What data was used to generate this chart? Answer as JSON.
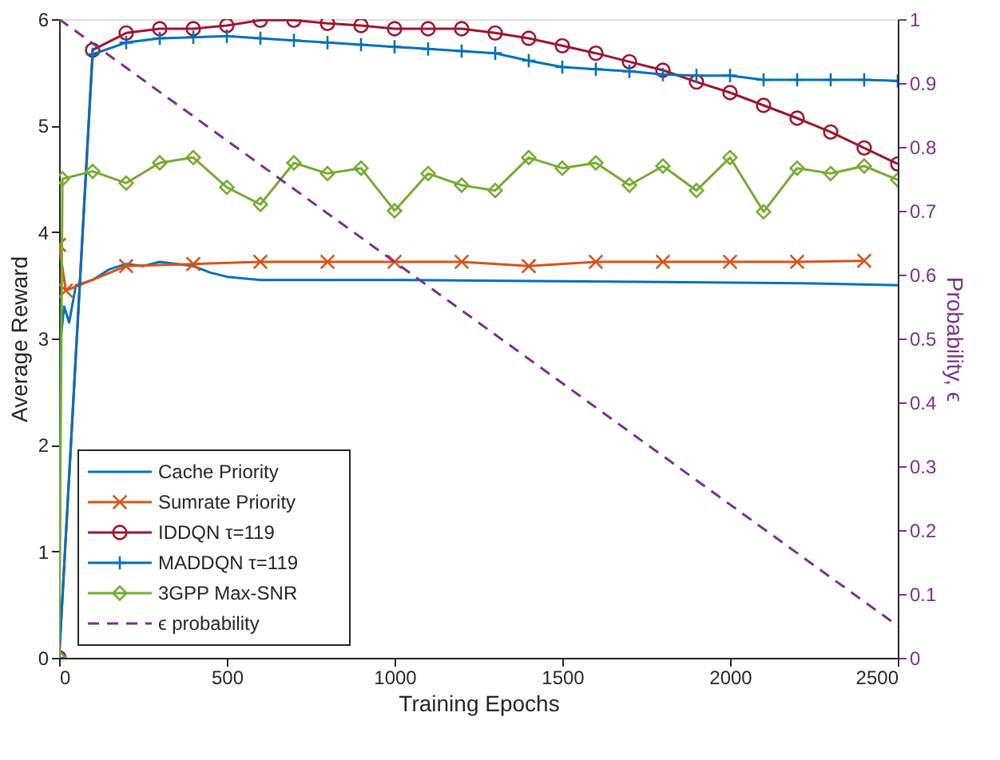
{
  "chart_data": {
    "type": "line",
    "xlabel": "Training Epochs",
    "ylabel": "Average Reward",
    "y2label": "Probability, ϵ",
    "xlim": [
      0,
      2500
    ],
    "xticks": [
      0,
      500,
      1000,
      1500,
      2000,
      2500
    ],
    "ylim": [
      0,
      6
    ],
    "yticks": [
      0,
      1,
      2,
      3,
      4,
      5,
      6
    ],
    "y2lim": [
      0,
      1
    ],
    "y2ticks": [
      0,
      0.1,
      0.2,
      0.3,
      0.4,
      0.5,
      0.6,
      0.7,
      0.8,
      0.9,
      1
    ],
    "grid": false,
    "legend": "bottom left",
    "series": [
      {
        "name": "Cache Priority",
        "color": "#0072bd",
        "marker": "none",
        "line_style": "solid",
        "x": [
          0,
          5,
          15,
          30,
          50,
          100,
          150,
          200,
          250,
          300,
          400,
          450,
          500,
          600,
          800,
          1000,
          1400,
          1800,
          2200,
          2500
        ],
        "values": [
          0,
          3.0,
          3.3,
          3.15,
          3.5,
          3.55,
          3.65,
          3.7,
          3.68,
          3.72,
          3.68,
          3.62,
          3.58,
          3.55,
          3.55,
          3.55,
          3.54,
          3.53,
          3.52,
          3.5
        ]
      },
      {
        "name": "Sumrate Priority",
        "color": "#d95319",
        "marker": "x",
        "line_style": "solid",
        "x": [
          0,
          20,
          200,
          400,
          600,
          800,
          1000,
          1200,
          1400,
          1600,
          1800,
          2000,
          2200,
          2400
        ],
        "values": [
          3.88,
          3.45,
          3.68,
          3.7,
          3.72,
          3.72,
          3.72,
          3.72,
          3.68,
          3.72,
          3.72,
          3.72,
          3.72,
          3.73
        ]
      },
      {
        "name": "IDDQN τ=119",
        "color": "#a2142f",
        "marker": "circle",
        "line_style": "solid",
        "x": [
          0,
          100,
          200,
          300,
          400,
          500,
          600,
          700,
          800,
          900,
          1000,
          1100,
          1200,
          1300,
          1400,
          1500,
          1600,
          1700,
          1800,
          1900,
          2000,
          2100,
          2200,
          2300,
          2400,
          2500
        ],
        "values": [
          0,
          5.71,
          5.87,
          5.91,
          5.91,
          5.94,
          5.99,
          5.99,
          5.96,
          5.94,
          5.91,
          5.91,
          5.91,
          5.87,
          5.82,
          5.75,
          5.68,
          5.6,
          5.52,
          5.41,
          5.31,
          5.19,
          5.07,
          4.94,
          4.79,
          4.64
        ]
      },
      {
        "name": "MADDQN τ=119",
        "color": "#0072bd",
        "marker": "cross",
        "line_style": "solid",
        "x": [
          0,
          100,
          200,
          300,
          400,
          500,
          600,
          700,
          800,
          900,
          1000,
          1100,
          1200,
          1300,
          1400,
          1500,
          1600,
          1700,
          1800,
          1900,
          2000,
          2100,
          2200,
          2300,
          2400,
          2500
        ],
        "values": [
          0,
          5.67,
          5.78,
          5.82,
          5.83,
          5.84,
          5.82,
          5.8,
          5.78,
          5.76,
          5.74,
          5.72,
          5.7,
          5.68,
          5.61,
          5.55,
          5.53,
          5.51,
          5.48,
          5.47,
          5.47,
          5.43,
          5.43,
          5.43,
          5.43,
          5.42
        ]
      },
      {
        "name": "3GPP Max-SNR",
        "color": "#77ac30",
        "marker": "diamond",
        "line_style": "solid",
        "x": [
          0,
          10,
          100,
          200,
          300,
          400,
          500,
          600,
          700,
          800,
          900,
          1000,
          1100,
          1200,
          1300,
          1400,
          1500,
          1600,
          1700,
          1800,
          1900,
          2000,
          2100,
          2200,
          2300,
          2400,
          2500
        ],
        "values": [
          0,
          4.5,
          4.57,
          4.46,
          4.65,
          4.7,
          4.42,
          4.26,
          4.65,
          4.55,
          4.6,
          4.2,
          4.55,
          4.44,
          4.39,
          4.7,
          4.6,
          4.65,
          4.44,
          4.62,
          4.39,
          4.7,
          4.19,
          4.6,
          4.55,
          4.62,
          4.49
        ]
      },
      {
        "name": "ϵ probability",
        "color": "#7e2f8e",
        "marker": "none",
        "line_style": "dashed",
        "axis": "y2",
        "x": [
          0,
          2500
        ],
        "values": [
          1,
          0.05
        ]
      }
    ]
  }
}
